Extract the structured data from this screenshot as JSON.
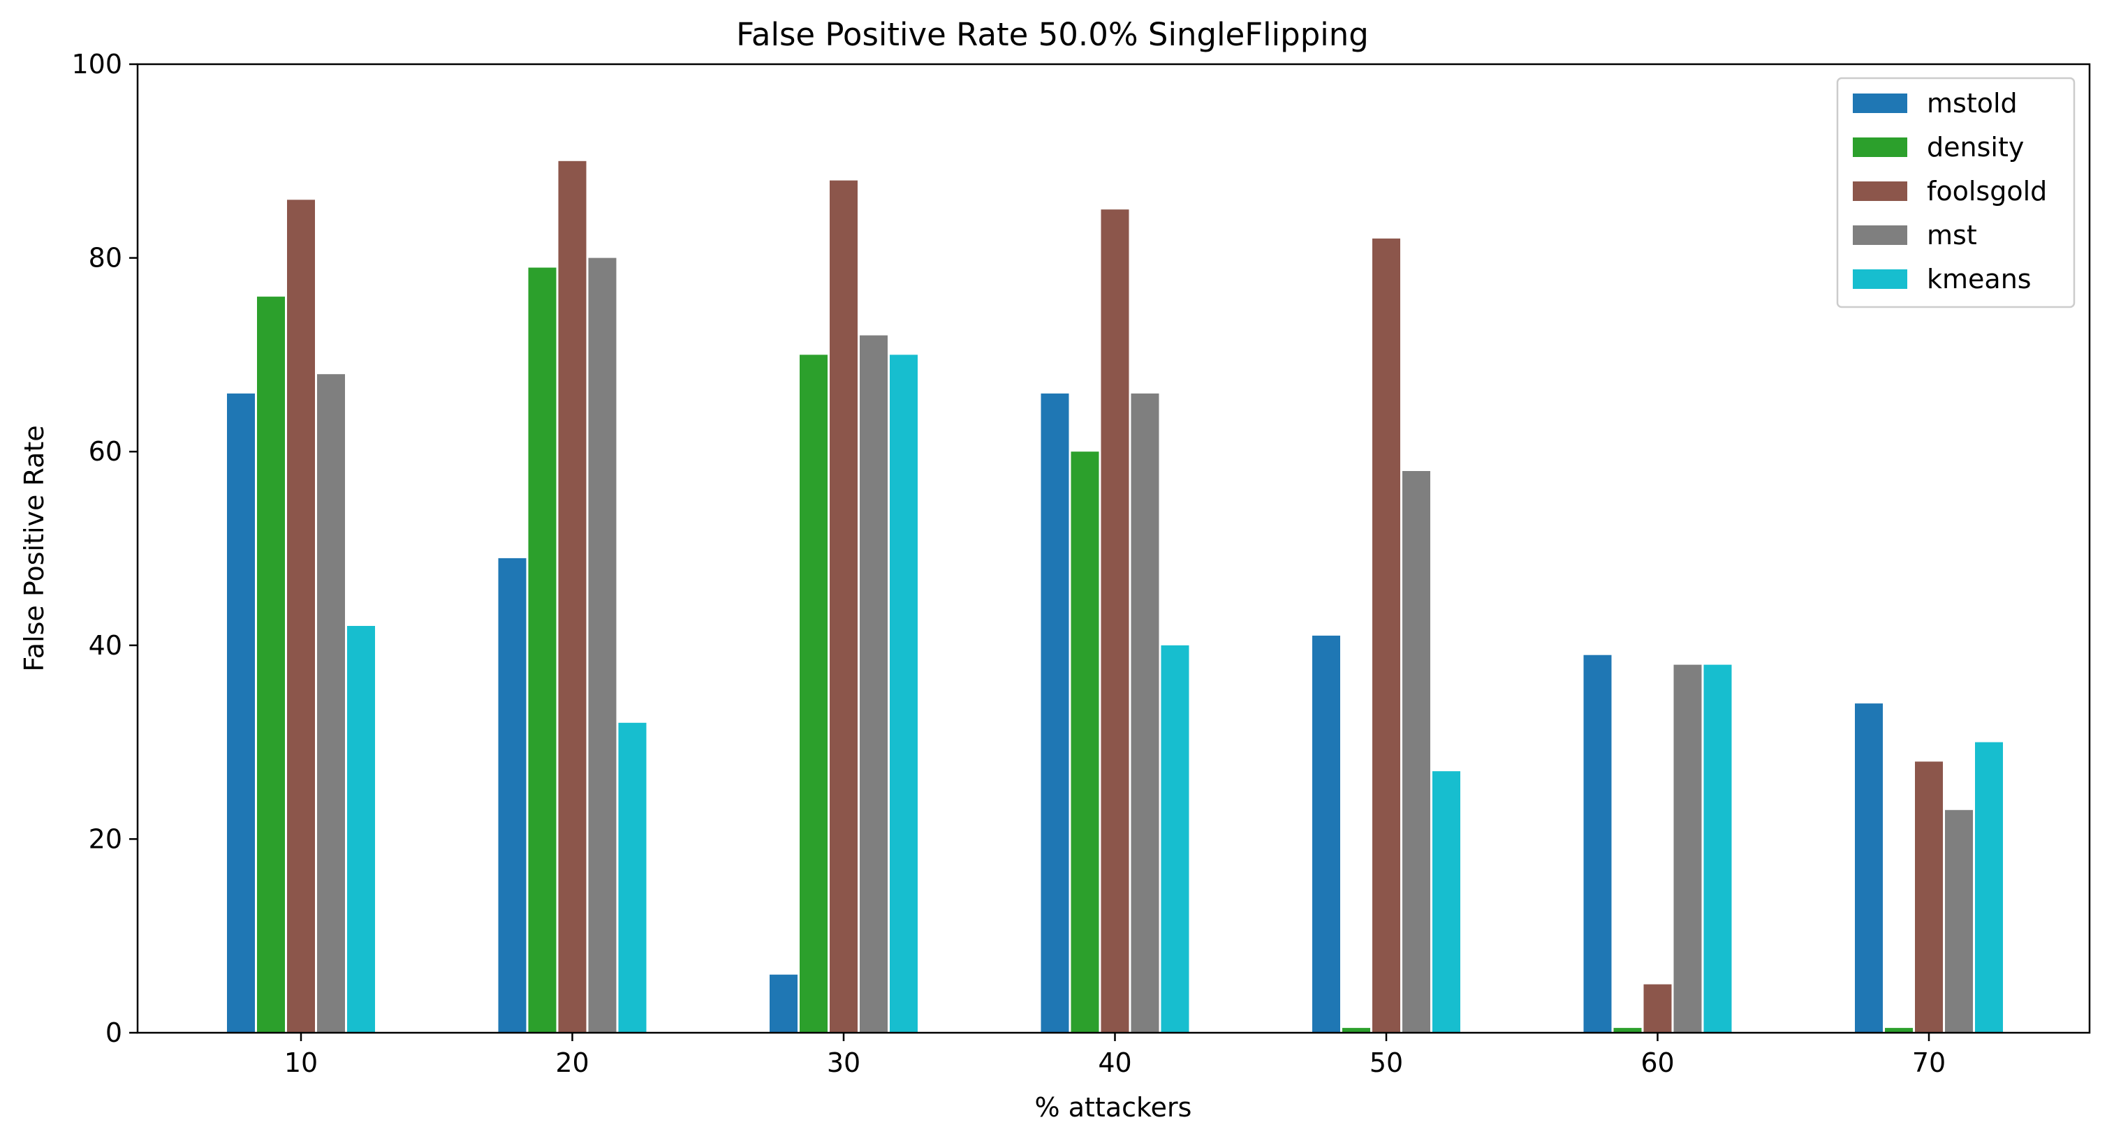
{
  "chart_data": {
    "type": "bar",
    "title": "False Positive Rate 50.0% SingleFlipping",
    "xlabel": "% attackers",
    "ylabel": "False Positive Rate",
    "categories": [
      "10",
      "20",
      "30",
      "40",
      "50",
      "60",
      "70"
    ],
    "ylim": [
      0,
      100
    ],
    "yticks": [
      "0",
      "20",
      "40",
      "60",
      "80",
      "100"
    ],
    "legend_position": "top-right",
    "grid": false,
    "series": [
      {
        "name": "mstold",
        "color": "#1f77b4",
        "values": [
          66,
          49,
          6,
          66,
          41,
          39,
          34
        ]
      },
      {
        "name": "density",
        "color": "#2ca02c",
        "values": [
          76,
          79,
          70,
          60,
          0.5,
          0.5,
          0.5
        ]
      },
      {
        "name": "foolsgold",
        "color": "#8c564b",
        "values": [
          86,
          90,
          88,
          85,
          82,
          5,
          28
        ]
      },
      {
        "name": "mst",
        "color": "#7f7f7f",
        "values": [
          68,
          80,
          72,
          66,
          58,
          38,
          23
        ]
      },
      {
        "name": "kmeans",
        "color": "#17becf",
        "values": [
          42,
          32,
          70,
          40,
          27,
          38,
          30
        ]
      }
    ]
  }
}
